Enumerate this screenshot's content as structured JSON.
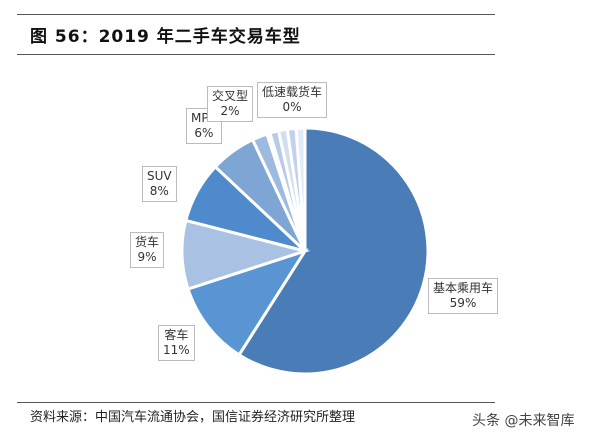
{
  "title": "图 56：2019 年二手车交易车型",
  "source": "资料来源：中国汽车流通协会，国信证券经济研究所整理",
  "watermark": "头条 @未来智库",
  "chart_data": {
    "type": "pie",
    "title": "",
    "start": "top",
    "direction": "counterclockwise-from-largest",
    "slices": [
      {
        "name": "基本乘用车",
        "value": 59,
        "label": "59%",
        "color": "#4a7db8"
      },
      {
        "name": "客车",
        "value": 11,
        "label": "11%",
        "color": "#5a95d3"
      },
      {
        "name": "货车",
        "value": 9,
        "label": "9%",
        "color": "#a9c2e4"
      },
      {
        "name": "SUV",
        "value": 8,
        "label": "8%",
        "color": "#4f8bcc"
      },
      {
        "name": "MPV",
        "value": 6,
        "label": "6%",
        "color": "#7ea6d4"
      },
      {
        "name": "交叉型",
        "value": 2,
        "label": "2%",
        "color": "#9dbbe0"
      },
      {
        "name": "低速载货车",
        "value": 0,
        "label": "0%",
        "color": "#c5d6ee"
      }
    ]
  }
}
